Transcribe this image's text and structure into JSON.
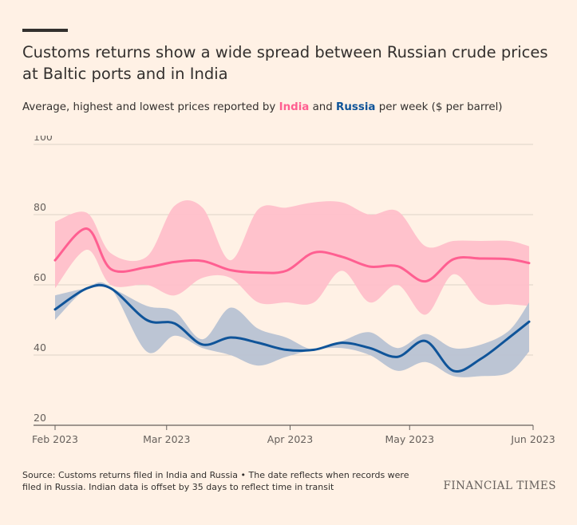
{
  "header": {
    "title": "Customs returns show a wide spread between Russian crude prices at Baltic ports and in India",
    "subtitle_pre": "Average, highest and lowest prices reported by ",
    "subtitle_india": "India",
    "subtitle_and": " and ",
    "subtitle_russia": "Russia",
    "subtitle_post": " per week ($ per barrel)"
  },
  "chart_data": {
    "type": "line",
    "x_axis": {
      "tick_labels": [
        "Feb 2023",
        "Mar 2023",
        "Apr 2023",
        "May 2023",
        "Jun 2023"
      ],
      "tick_dates": [
        "2023-02-01",
        "2023-03-01",
        "2023-04-01",
        "2023-05-01",
        "2023-06-01"
      ],
      "range": [
        "2023-02-01",
        "2023-06-01"
      ]
    },
    "y_axis": {
      "tick_labels": [
        "20",
        "40",
        "60",
        "80",
        "100"
      ],
      "ticks": [
        20,
        40,
        60,
        80,
        100
      ],
      "range": [
        20,
        100
      ]
    },
    "grid": true,
    "series": [
      {
        "name": "India",
        "color": "#ff5f91",
        "band_color": "#ffbfca",
        "x": [
          "2023-02-01",
          "2023-02-09",
          "2023-02-15",
          "2023-02-24",
          "2023-03-03",
          "2023-03-10",
          "2023-03-17",
          "2023-03-24",
          "2023-03-31",
          "2023-04-07",
          "2023-04-14",
          "2023-04-21",
          "2023-04-28",
          "2023-05-05",
          "2023-05-12",
          "2023-05-19",
          "2023-05-26",
          "2023-05-31"
        ],
        "avg": [
          67,
          76,
          64.5,
          65,
          66.5,
          66.8,
          64.2,
          63.5,
          64,
          69.2,
          68,
          65.2,
          65.3,
          61,
          67.3,
          67.5,
          67.3,
          66.2
        ],
        "high": [
          78,
          80.5,
          69,
          68,
          82.5,
          82,
          67,
          81.5,
          82,
          83.5,
          83.5,
          80,
          81,
          71,
          72.5,
          72.5,
          72.5,
          71
        ],
        "low": [
          59,
          70,
          60,
          60,
          57,
          62,
          62,
          55,
          55,
          55,
          64,
          55,
          60,
          51.5,
          63,
          55,
          54.5,
          54
        ]
      },
      {
        "name": "Russia",
        "color": "#0f5499",
        "band_color": "#b8c2d3",
        "x": [
          "2023-02-01",
          "2023-02-09",
          "2023-02-15",
          "2023-02-24",
          "2023-03-03",
          "2023-03-10",
          "2023-03-17",
          "2023-03-24",
          "2023-03-31",
          "2023-04-07",
          "2023-04-14",
          "2023-04-21",
          "2023-04-28",
          "2023-05-05",
          "2023-05-12",
          "2023-05-19",
          "2023-05-26",
          "2023-05-31"
        ],
        "avg": [
          53,
          59,
          59,
          50,
          49,
          43,
          45,
          43.5,
          41.5,
          41.5,
          43.5,
          42,
          39.5,
          44,
          35.5,
          39,
          45,
          49.5
        ],
        "high": [
          57,
          59,
          59,
          54,
          52.5,
          44.5,
          53.5,
          47.5,
          45,
          41.5,
          44,
          46.5,
          42,
          46,
          42,
          43,
          47,
          55
        ],
        "low": [
          50,
          59,
          59,
          41,
          45.5,
          42,
          40,
          37,
          39.5,
          41.5,
          42,
          40,
          35.5,
          38,
          34,
          34,
          35,
          41
        ]
      }
    ]
  },
  "footer": {
    "source": "Source: Customs returns filed in India and Russia • The date reflects when records were filed in Russia. Indian data is offset by 35 days to reflect time in transit",
    "brand": "FINANCIAL TIMES"
  }
}
